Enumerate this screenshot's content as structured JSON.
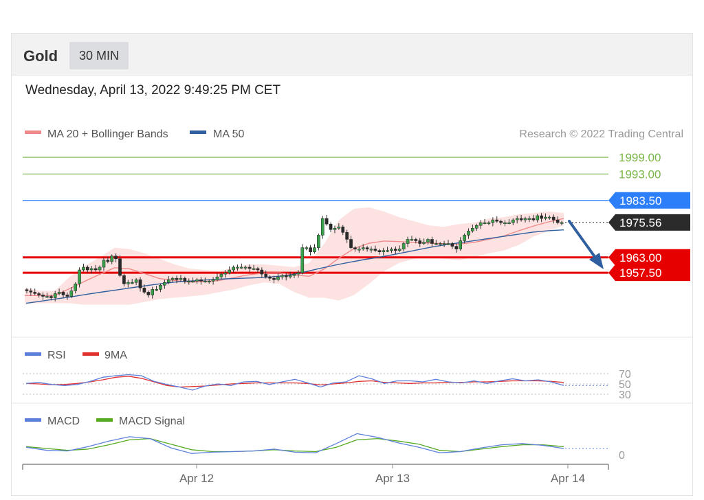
{
  "header": {
    "instrument": "Gold",
    "timeframe": "30 MIN"
  },
  "timestamp": "Wednesday, April 13, 2022 9:49:25 PM CET",
  "legend": {
    "ma20": "MA 20 + Bollinger Bands",
    "ma50": "MA 50",
    "credit": "Research © 2022 Trading Central"
  },
  "colors": {
    "ma20": "#f08a8a",
    "ma50": "#2f5f9e",
    "band_fill": "#fde2e2",
    "candle": "#333333",
    "green_level": "#7ab648",
    "resistance_blue": "#2d7ff9",
    "support_red": "#e60000",
    "last_price_bg": "#2b2b2b",
    "arrow": "#2f5f9e",
    "rsi": "#5b7fdb",
    "rsi_ma": "#e03030",
    "macd": "#5b7fdb",
    "macd_signal": "#55aa22"
  },
  "chart_data": [
    {
      "type": "candlestick",
      "title": "",
      "x_ticks": [
        "Apr 12",
        "Apr 13",
        "Apr 14"
      ],
      "price_levels": [
        {
          "label": "1999.00",
          "value": 1999.0,
          "style": "target"
        },
        {
          "label": "1993.00",
          "value": 1993.0,
          "style": "target"
        },
        {
          "label": "1983.50",
          "value": 1983.5,
          "style": "resistance"
        },
        {
          "label": "1975.56",
          "value": 1975.56,
          "style": "last"
        },
        {
          "label": "1963.00",
          "value": 1963.0,
          "style": "support"
        },
        {
          "label": "1957.50",
          "value": 1957.5,
          "style": "support"
        }
      ],
      "close": [
        1951,
        1950.5,
        1950,
        1949.5,
        1949,
        1949,
        1948.5,
        1950,
        1950.5,
        1949.5,
        1949,
        1951,
        1953.5,
        1958.5,
        1959.5,
        1958.5,
        1959,
        1958.5,
        1959.5,
        1962,
        1961.5,
        1963.5,
        1962.5,
        1956.5,
        1953.5,
        1954,
        1954,
        1955,
        1952,
        1950.5,
        1949.5,
        1951.5,
        1951.5,
        1953,
        1954,
        1955,
        1955.5,
        1955,
        1955.5,
        1954.5,
        1954.5,
        1954.5,
        1955,
        1954.5,
        1954.5,
        1954.5,
        1955,
        1956,
        1957,
        1957.5,
        1958.5,
        1959.5,
        1959.5,
        1959.5,
        1959.5,
        1959,
        1959,
        1958.5,
        1957,
        1956,
        1955.5,
        1955,
        1956,
        1956.5,
        1956,
        1956.5,
        1957,
        1957.5,
        1966.5,
        1966.5,
        1965,
        1966.5,
        1971,
        1977,
        1975,
        1973,
        1973.5,
        1974,
        1972,
        1969.5,
        1966.5,
        1966,
        1966,
        1966.5,
        1966,
        1966,
        1965.5,
        1965,
        1965.5,
        1965.5,
        1966,
        1965.5,
        1966,
        1968,
        1969.5,
        1969.5,
        1969,
        1968,
        1968.5,
        1969.5,
        1968,
        1968,
        1968,
        1968,
        1968,
        1967,
        1966,
        1969,
        1971,
        1972.5,
        1973.5,
        1974.5,
        1975.5,
        1975.5,
        1975.5,
        1976.5,
        1976,
        1975.5,
        1975.5,
        1975.5,
        1976.5,
        1977,
        1976.5,
        1977,
        1977,
        1976.5,
        1978,
        1977,
        1977.5,
        1977.5,
        1976.5,
        1975.5,
        1975.56
      ],
      "ma50": [
        1946.5,
        1947.3,
        1948.1,
        1948.9,
        1949.8,
        1950.6,
        1951.4,
        1952.2,
        1953,
        1953.7,
        1954.3,
        1954.6,
        1955,
        1955.3,
        1955.5,
        1955.7,
        1956,
        1956.5,
        1957.6,
        1958.9,
        1960.1,
        1961.2,
        1962.2,
        1963.1,
        1964.1,
        1965.2,
        1966.3,
        1967.3,
        1968.1,
        1968.9,
        1969.7,
        1970.5,
        1971.3,
        1972.1,
        1972.6,
        1972.9
      ],
      "ma20": [
        1949.3,
        1949.3,
        1949.3,
        1951.8,
        1954.4,
        1956.9,
        1959.3,
        1958.9,
        1957.2,
        1955.4,
        1954.7,
        1954.1,
        1954.3,
        1954.7,
        1955.8,
        1956.8,
        1957.4,
        1957.5,
        1956.7,
        1956.2,
        1958.8,
        1962.8,
        1966.2,
        1968.1,
        1968.9,
        1968.7,
        1968.4,
        1968.2,
        1967.9,
        1967.8,
        1968.4,
        1969.5,
        1970.7,
        1972.6,
        1974.3,
        1975.8,
        1977
      ],
      "bb_upper": [
        1952,
        1951,
        1951,
        1956,
        1960,
        1963,
        1966.5,
        1966,
        1964.5,
        1962.5,
        1960.5,
        1959,
        1958.5,
        1958,
        1959.5,
        1960.5,
        1960.5,
        1960,
        1959.5,
        1961,
        1968,
        1976.5,
        1980.5,
        1981,
        1979.5,
        1977.5,
        1976,
        1974.5,
        1974,
        1975,
        1975.5,
        1977,
        1977.5,
        1978.5,
        1979,
        1979.5,
        1979
      ],
      "bb_lower": [
        1946.5,
        1946.5,
        1946.5,
        1946.5,
        1946,
        1946,
        1946,
        1946,
        1947,
        1948,
        1948.5,
        1949,
        1949.5,
        1950.5,
        1951.5,
        1953,
        1954,
        1953.5,
        1950.5,
        1948.5,
        1948.5,
        1947.5,
        1949.5,
        1953.5,
        1958,
        1961,
        1962.5,
        1963,
        1962.5,
        1962,
        1963,
        1964.5,
        1965.5,
        1967.5,
        1970.5,
        1972.5,
        1974.5
      ]
    },
    {
      "type": "line",
      "name": "RSI panel",
      "legend": [
        "RSI",
        "9MA"
      ],
      "y_ticks": [
        70,
        50,
        30
      ],
      "series": [
        {
          "name": "RSI",
          "values": [
            51,
            53,
            49,
            47,
            49,
            55,
            63,
            66,
            68,
            66,
            55,
            49,
            44,
            38,
            46,
            50,
            47,
            54,
            55,
            49,
            54,
            59,
            52,
            44,
            52,
            54,
            66,
            60,
            51,
            56,
            56,
            54,
            59,
            54,
            52,
            56,
            51,
            56,
            60,
            56,
            58,
            54,
            47
          ]
        },
        {
          "name": "9MA",
          "values": [
            51,
            50,
            48.5,
            49,
            51,
            54,
            58,
            63,
            65,
            61,
            54,
            47,
            44,
            45,
            46,
            48,
            50,
            51,
            52,
            52,
            52,
            52,
            51,
            48,
            50,
            52,
            55,
            56,
            53,
            52,
            51,
            52,
            52,
            53,
            53,
            54,
            54,
            55,
            56,
            56,
            56,
            55,
            53
          ]
        }
      ]
    },
    {
      "type": "line",
      "name": "MACD panel",
      "legend": [
        "MACD",
        "MACD Signal"
      ],
      "y_ticks": [
        0
      ],
      "series": [
        {
          "name": "MACD",
          "values": [
            1.2,
            0.7,
            0.6,
            1.3,
            2.2,
            2.9,
            2.6,
            1.1,
            0.2,
            0.4,
            0.5,
            0.6,
            0.9,
            0.4,
            0.3,
            1.8,
            3.4,
            2.8,
            1.9,
            1.2,
            0.3,
            0.5,
            1.1,
            1.6,
            1.8,
            1.5,
            1.0
          ]
        },
        {
          "name": "MACD Signal",
          "values": [
            1.3,
            1.0,
            0.7,
            0.9,
            1.6,
            2.4,
            2.6,
            1.7,
            0.8,
            0.5,
            0.5,
            0.6,
            0.8,
            0.6,
            0.5,
            1.2,
            2.4,
            2.6,
            2.2,
            1.7,
            0.7,
            0.5,
            0.9,
            1.3,
            1.6,
            1.6,
            1.3
          ]
        }
      ]
    }
  ]
}
